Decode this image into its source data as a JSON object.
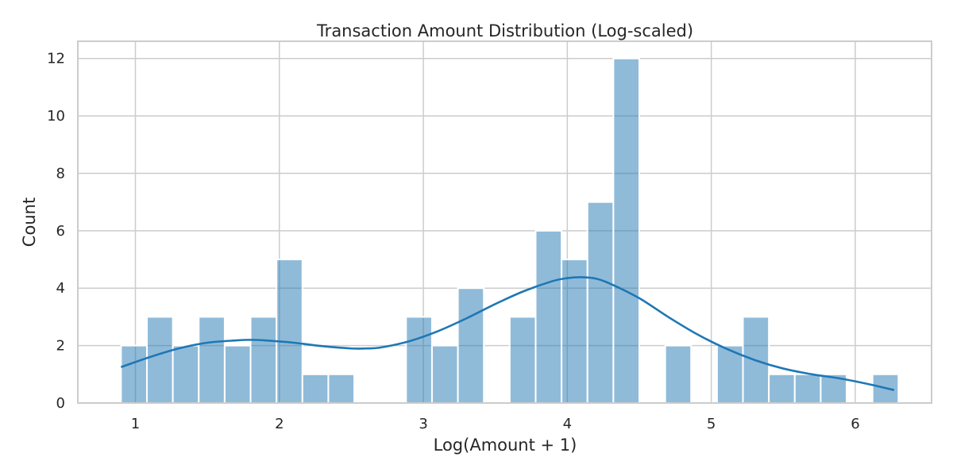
{
  "chart_data": {
    "type": "bar",
    "subtype": "histogram",
    "title": "Transaction Amount Distribution (Log-scaled)",
    "xlabel": "Log(Amount + 1)",
    "ylabel": "Count",
    "xlim": [
      0.6,
      6.53
    ],
    "ylim": [
      0,
      12.6
    ],
    "xticks": [
      1,
      2,
      3,
      4,
      5,
      6
    ],
    "yticks": [
      0,
      2,
      4,
      6,
      8,
      10,
      12
    ],
    "grid": true,
    "bin_start": 0.9,
    "bin_width": 0.18,
    "counts": [
      2,
      3,
      2,
      3,
      2,
      3,
      5,
      1,
      1,
      0,
      0,
      3,
      2,
      4,
      0,
      3,
      6,
      5,
      7,
      12,
      0,
      2,
      0,
      2,
      3,
      1,
      1,
      1,
      0,
      1
    ],
    "kde": {
      "x": [
        0.9,
        1.1,
        1.3,
        1.5,
        1.7,
        1.8,
        1.9,
        2.1,
        2.3,
        2.5,
        2.6,
        2.7,
        2.9,
        3.1,
        3.3,
        3.5,
        3.7,
        3.9,
        4.0,
        4.1,
        4.2,
        4.3,
        4.5,
        4.7,
        4.9,
        5.1,
        5.3,
        5.5,
        5.7,
        5.9,
        6.1,
        6.27
      ],
      "y": [
        1.25,
        1.6,
        1.9,
        2.1,
        2.18,
        2.2,
        2.18,
        2.1,
        1.98,
        1.9,
        1.9,
        1.93,
        2.15,
        2.5,
        2.95,
        3.45,
        3.9,
        4.25,
        4.35,
        4.38,
        4.33,
        4.15,
        3.65,
        3.0,
        2.4,
        1.9,
        1.5,
        1.2,
        1.0,
        0.85,
        0.65,
        0.45
      ]
    }
  }
}
